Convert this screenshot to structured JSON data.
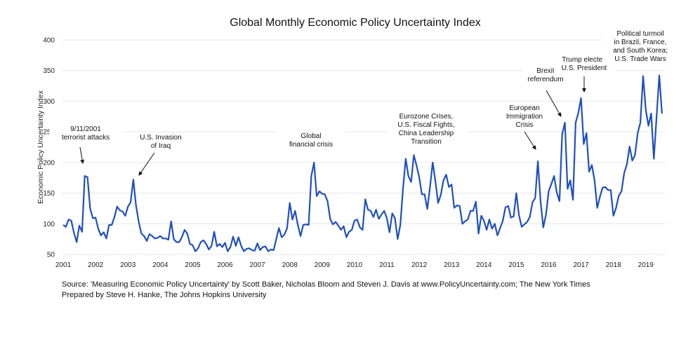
{
  "chart_data": {
    "type": "line",
    "title": "Global Monthly Economic Policy Uncertainty Index",
    "xlabel": "",
    "ylabel": "Economic Policy Uncertainty Index",
    "ylim": [
      50,
      400
    ],
    "yticks": [
      "50",
      "100",
      "150",
      "200",
      "250",
      "300",
      "350",
      "400"
    ],
    "xticks": [
      "2001",
      "2002",
      "2003",
      "2004",
      "2005",
      "2006",
      "2007",
      "2008",
      "2009",
      "2010",
      "2011",
      "2012",
      "2013",
      "2014",
      "2015",
      "2016",
      "2017",
      "2018",
      "2019"
    ],
    "grid": true,
    "line_color": "#1f4fbf",
    "x_start": "2001-01",
    "x_frequency": "monthly",
    "values": [
      98,
      95,
      107,
      105,
      85,
      70,
      97,
      87,
      178,
      176,
      125,
      109,
      110,
      92,
      81,
      86,
      76,
      98,
      98,
      111,
      128,
      122,
      120,
      113,
      128,
      135,
      172,
      130,
      103,
      84,
      80,
      72,
      83,
      80,
      76,
      77,
      80,
      76,
      76,
      74,
      104,
      75,
      70,
      70,
      78,
      90,
      84,
      67,
      65,
      55,
      60,
      70,
      73,
      67,
      58,
      64,
      87,
      63,
      67,
      62,
      69,
      55,
      62,
      79,
      64,
      78,
      64,
      55,
      59,
      60,
      57,
      56,
      68,
      57,
      62,
      63,
      55,
      58,
      57,
      75,
      93,
      78,
      82,
      93,
      134,
      107,
      121,
      98,
      80,
      98,
      99,
      98,
      178,
      200,
      145,
      153,
      149,
      148,
      137,
      108,
      99,
      103,
      97,
      90,
      96,
      78,
      87,
      90,
      105,
      107,
      94,
      90,
      140,
      123,
      121,
      111,
      123,
      108,
      115,
      121,
      109,
      86,
      117,
      109,
      75,
      98,
      157,
      206,
      178,
      168,
      212,
      195,
      176,
      148,
      148,
      124,
      160,
      200,
      170,
      134,
      147,
      171,
      180,
      160,
      164,
      126,
      130,
      129,
      100,
      104,
      107,
      121,
      121,
      136,
      84,
      113,
      105,
      90,
      107,
      92,
      100,
      81,
      93,
      105,
      127,
      129,
      110,
      112,
      150,
      114,
      95,
      99,
      103,
      111,
      135,
      142,
      202,
      136,
      94,
      115,
      153,
      165,
      178,
      151,
      137,
      246,
      265,
      157,
      171,
      139,
      265,
      281,
      305,
      230,
      248,
      185,
      196,
      171,
      126,
      144,
      159,
      160,
      155,
      155,
      113,
      126,
      146,
      153,
      183,
      197,
      226,
      203,
      212,
      248,
      265,
      341,
      286,
      260,
      280,
      206,
      275,
      342,
      280
    ],
    "annotations": [
      {
        "lines": [
          "9/11/2001",
          "terrorist attacks"
        ]
      },
      {
        "lines": [
          "U.S. Invasion",
          "of Iraq"
        ]
      },
      {
        "lines": [
          "Global",
          "financial crisis"
        ]
      },
      {
        "lines": [
          "Eurozone Crises,",
          "U.S. Fiscal Fights,",
          "China Leadership",
          "Transition"
        ]
      },
      {
        "lines": [
          "European",
          "Immigration",
          "Crisis"
        ]
      },
      {
        "lines": [
          "Brexit",
          "referendum"
        ]
      },
      {
        "lines": [
          "Trump elected",
          "U.S. President"
        ]
      },
      {
        "lines": [
          "Political turmoil",
          "in Brazil, France,",
          "and South Korea;",
          "U.S. Trade Wars"
        ]
      }
    ]
  },
  "source": {
    "line1": "Source: 'Measuring Economic Policy Uncertainty' by Scott Baker, Nicholas Bloom and Steven J. Davis at www.PolicyUncertainty.com; The New York Times",
    "line2": "Prepared by Steve H. Hanke, The Johns Hopkins University"
  }
}
